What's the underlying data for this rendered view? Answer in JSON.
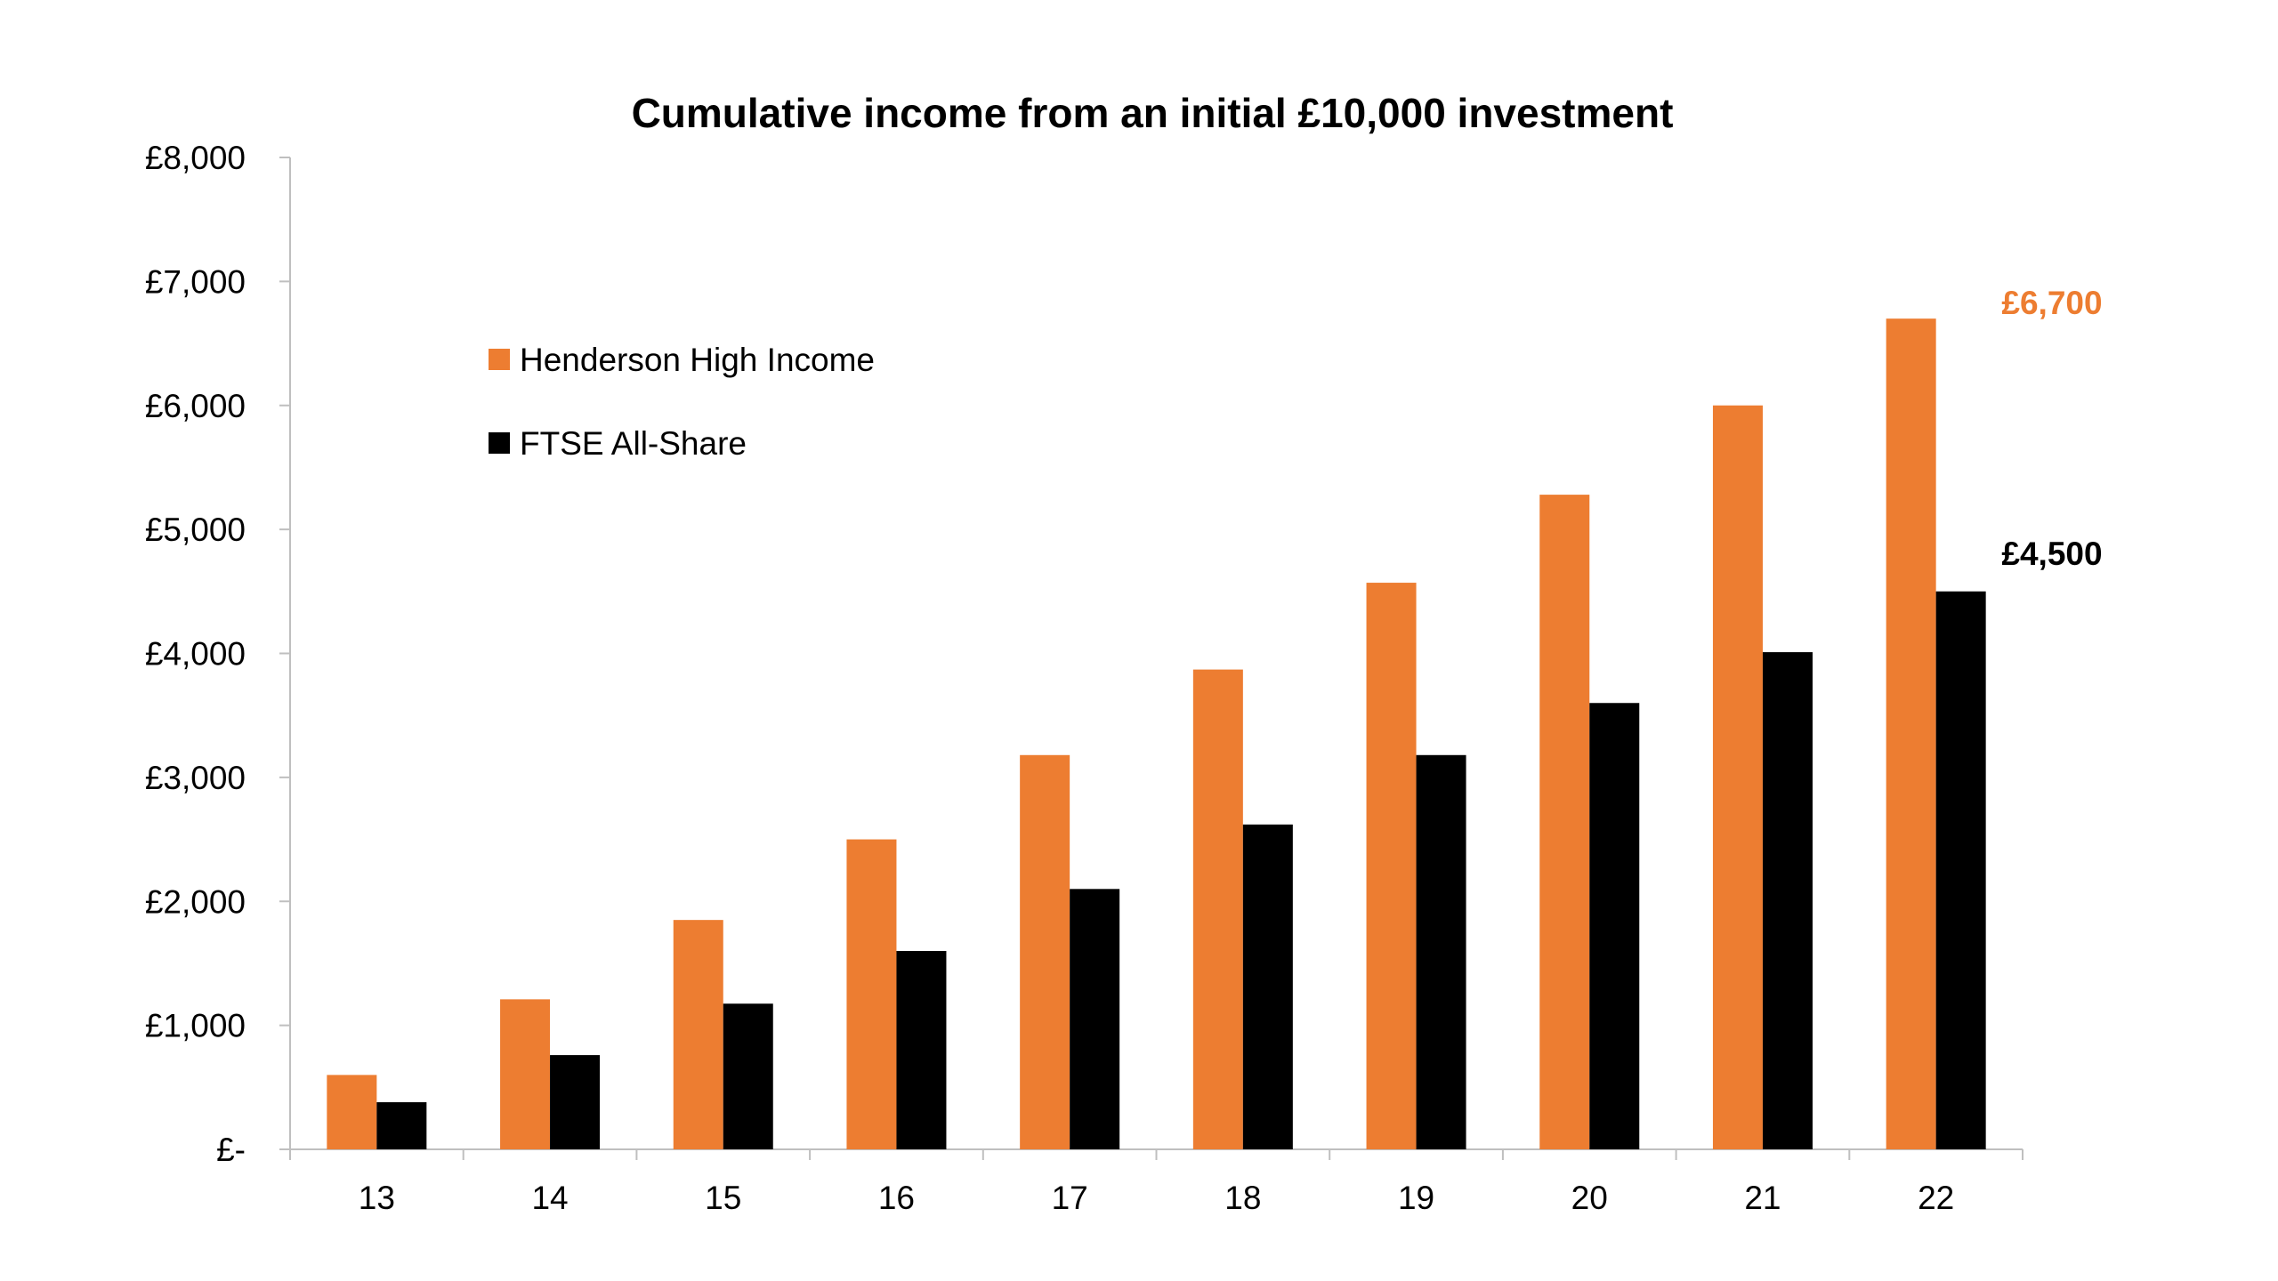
{
  "chart_data": {
    "type": "bar",
    "title": "Cumulative income from an initial £10,000 investment",
    "xlabel": "",
    "ylabel": "",
    "categories": [
      "13",
      "14",
      "15",
      "16",
      "17",
      "18",
      "19",
      "20",
      "21",
      "22"
    ],
    "series": [
      {
        "name": "Henderson High Income",
        "color": "#ED7D31",
        "values": [
          600,
          1210,
          1850,
          2500,
          3180,
          3870,
          4570,
          5280,
          6000,
          6700
        ]
      },
      {
        "name": "FTSE All-Share",
        "color": "#000000",
        "values": [
          380,
          760,
          1175,
          1600,
          2100,
          2620,
          3180,
          3600,
          4010,
          4500
        ]
      }
    ],
    "ylim": [
      0,
      8000
    ],
    "yticks": [
      0,
      1000,
      2000,
      3000,
      4000,
      5000,
      6000,
      7000,
      8000
    ],
    "ytick_labels": [
      "£-",
      "£1,000",
      "£2,000",
      "£3,000",
      "£4,000",
      "£5,000",
      "£6,000",
      "£7,000",
      "£8,000"
    ],
    "grid": false,
    "legend_placement": "top-left",
    "annotations": [
      {
        "text": "£6,700",
        "series": 0,
        "category": "22",
        "color": "#ED7D31"
      },
      {
        "text": "£4,500",
        "series": 1,
        "category": "22",
        "color": "#000000"
      }
    ]
  }
}
